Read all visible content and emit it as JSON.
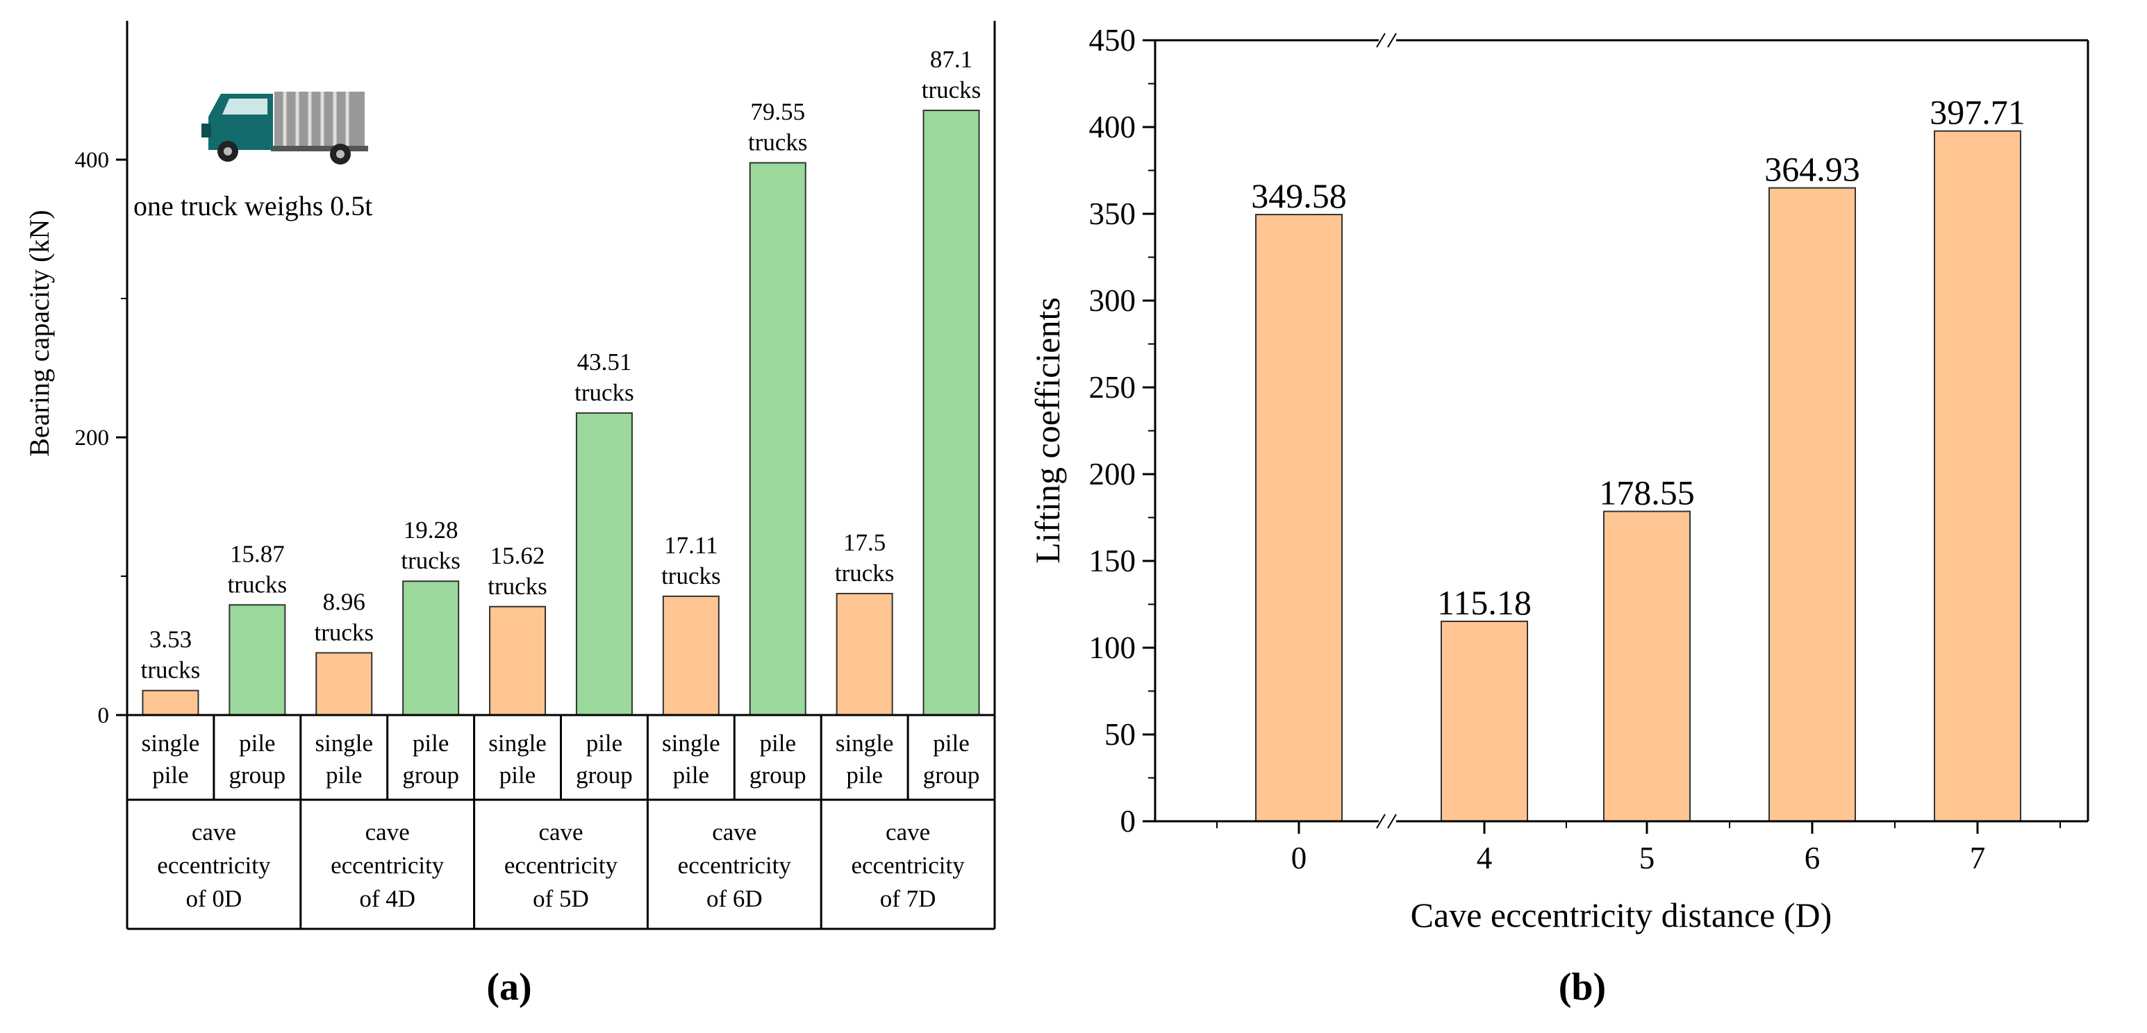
{
  "colors": {
    "single": "#FFC593",
    "group": "#9AD99B",
    "edge": "#333333",
    "truck_cab": "#136B6B",
    "truck_box": "#999999"
  },
  "panel_a": {
    "label": "(a)",
    "note": "one truck weighs 0.5t",
    "chart_data": {
      "type": "bar",
      "ylabel": "Bearing capacity (kN)",
      "ylim": [
        0,
        500
      ],
      "yticks": [
        0,
        200,
        400
      ],
      "groups": [
        {
          "label_lines": [
            "cave",
            "eccentricity",
            "of 0D"
          ]
        },
        {
          "label_lines": [
            "cave",
            "eccentricity",
            "of 4D"
          ]
        },
        {
          "label_lines": [
            "cave",
            "eccentricity",
            "of 5D"
          ]
        },
        {
          "label_lines": [
            "cave",
            "eccentricity",
            "of 6D"
          ]
        },
        {
          "label_lines": [
            "cave",
            "eccentricity",
            "of 7D"
          ]
        }
      ],
      "subcategories": [
        {
          "lines": [
            "single",
            "pile"
          ]
        },
        {
          "lines": [
            "pile",
            "group"
          ]
        }
      ],
      "series": [
        {
          "name": "single pile",
          "values": [
            17.65,
            44.8,
            78.1,
            85.55,
            87.5
          ],
          "labels": [
            "3.53",
            "8.96",
            "15.62",
            "17.11",
            "17.5"
          ]
        },
        {
          "name": "pile group",
          "values": [
            79.35,
            96.4,
            217.55,
            397.75,
            435.5
          ],
          "labels": [
            "15.87",
            "19.28",
            "43.51",
            "79.55",
            "87.1"
          ]
        }
      ],
      "label_unit": "trucks"
    }
  },
  "panel_b": {
    "label": "(b)",
    "chart_data": {
      "type": "bar",
      "xlabel": "Cave eccentricity distance (D)",
      "ylabel": "Lifting coefficients",
      "ylim": [
        0,
        450
      ],
      "yticks": [
        0,
        50,
        100,
        150,
        200,
        250,
        300,
        350,
        400,
        450
      ],
      "categories": [
        "0",
        "4",
        "5",
        "6",
        "7"
      ],
      "values": [
        349.58,
        115.18,
        178.55,
        364.93,
        397.71
      ],
      "labels": [
        "349.58",
        "115.18",
        "178.55",
        "364.93",
        "397.71"
      ],
      "axis_break": "between 0 and 4"
    }
  }
}
